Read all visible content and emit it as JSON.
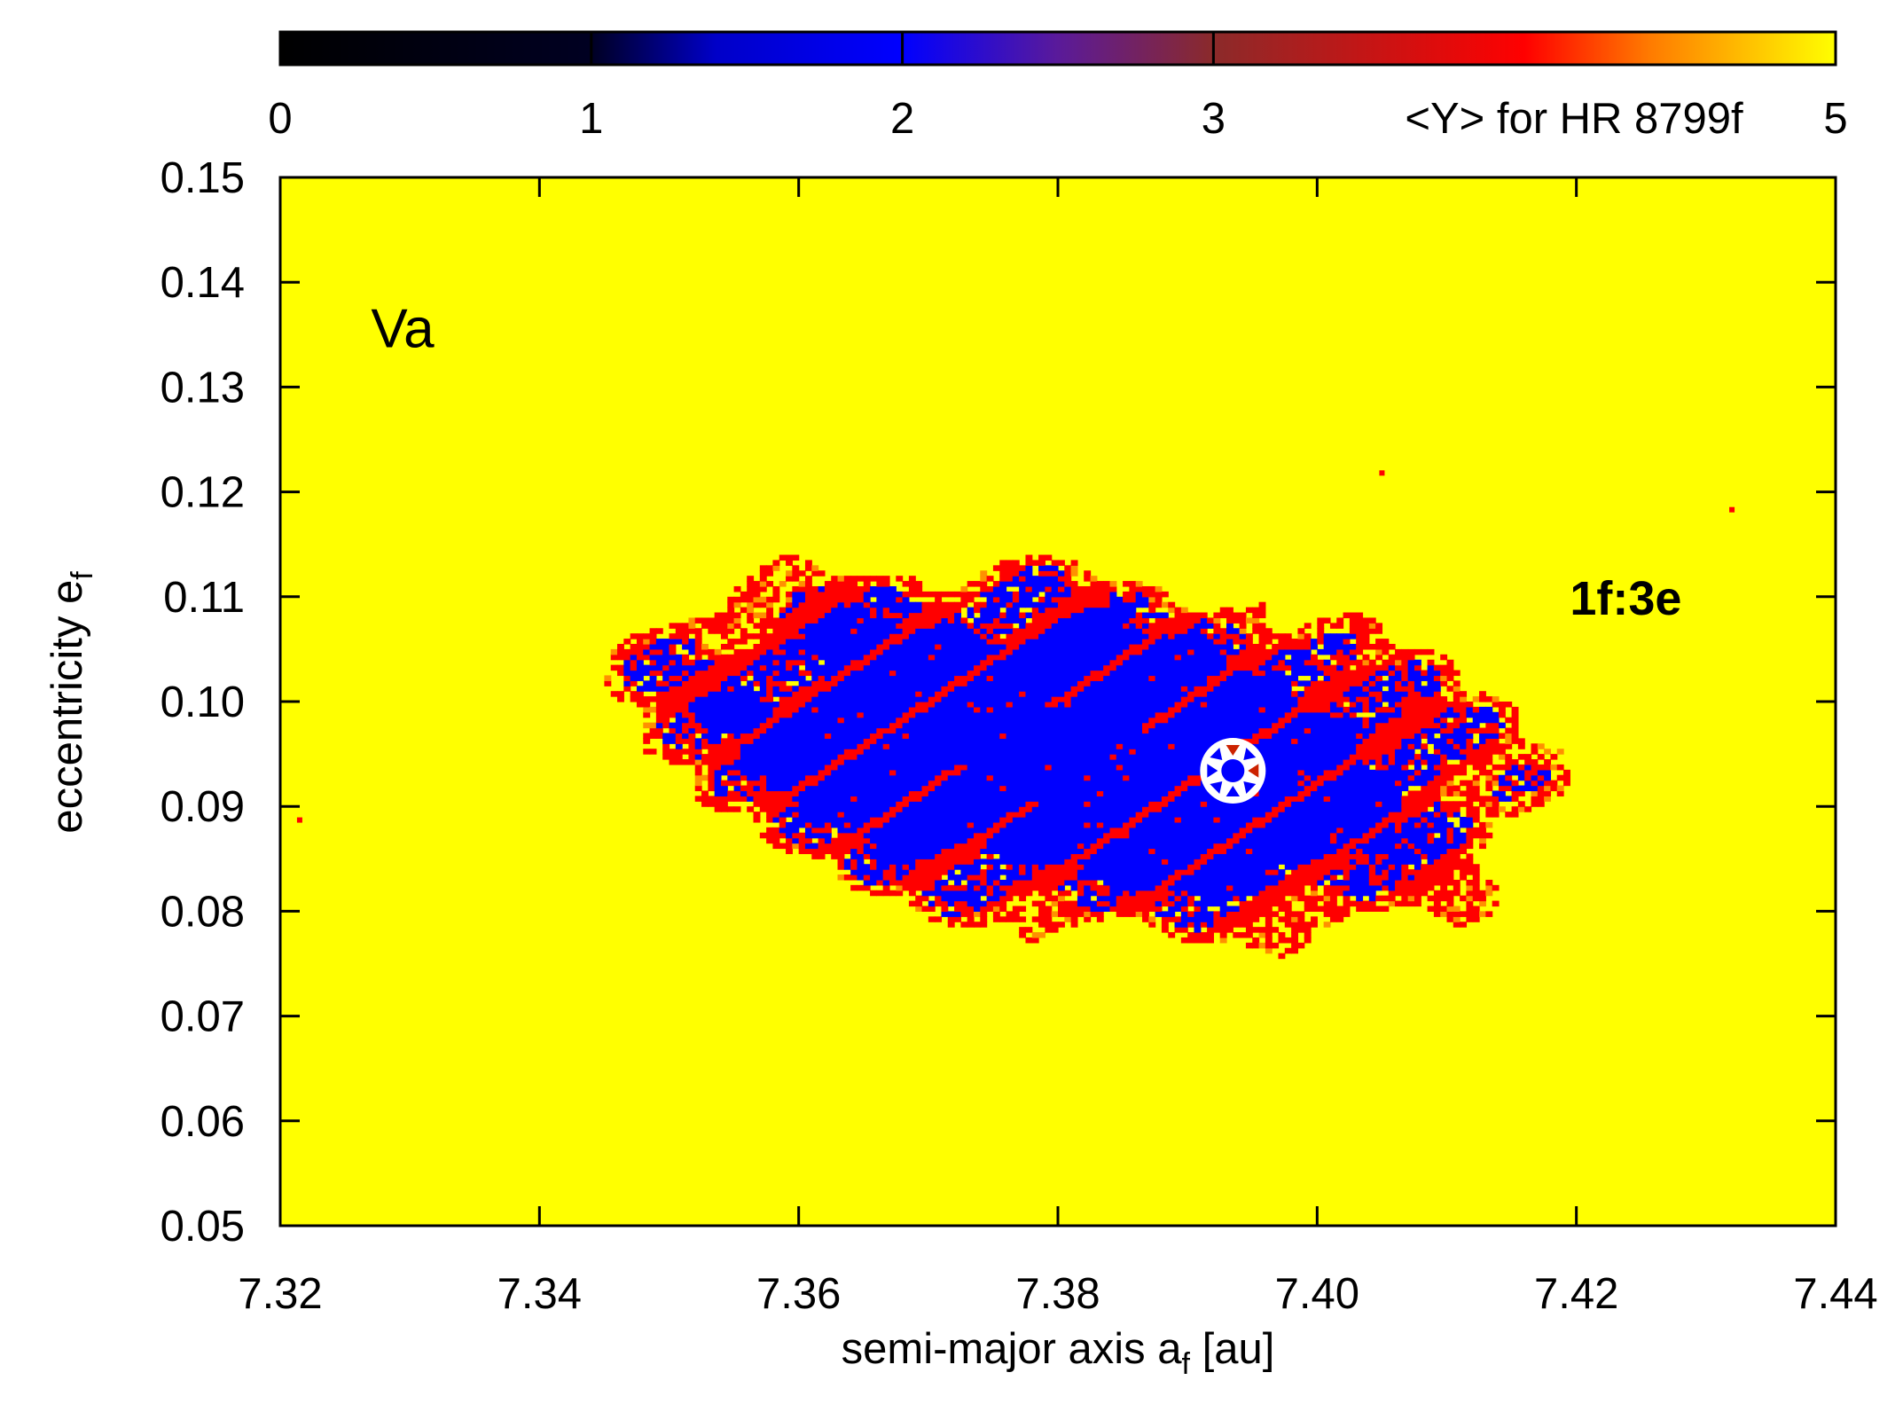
{
  "chart_data": {
    "type": "heatmap",
    "title": "",
    "xlabel": {
      "main": "semi-major axis a",
      "sub": "f",
      "unit": " [au]"
    },
    "ylabel": {
      "main": "eccentricity e",
      "sub": "f"
    },
    "xlim": [
      7.32,
      7.44
    ],
    "ylim": [
      0.05,
      0.15
    ],
    "x_ticks": [
      "7.32",
      "7.34",
      "7.36",
      "7.38",
      "7.40",
      "7.42",
      "7.44"
    ],
    "y_ticks": [
      "0.05",
      "0.06",
      "0.07",
      "0.08",
      "0.09",
      "0.10",
      "0.11",
      "0.12",
      "0.13",
      "0.14",
      "0.15"
    ],
    "colorbar": {
      "label": "<Y> for HR 8799f",
      "range": [
        0,
        5
      ],
      "ticks": [
        "0",
        "1",
        "2",
        "3",
        "5"
      ],
      "stops": [
        {
          "v": 0,
          "color": "#000000"
        },
        {
          "v": 1,
          "color": "#000022"
        },
        {
          "v": 1.4,
          "color": "#0000c8"
        },
        {
          "v": 2,
          "color": "#0000ff"
        },
        {
          "v": 2.5,
          "color": "#5a1a9a"
        },
        {
          "v": 3,
          "color": "#8b2a2a"
        },
        {
          "v": 4,
          "color": "#ff0000"
        },
        {
          "v": 4.4,
          "color": "#ff7a00"
        },
        {
          "v": 5,
          "color": "#ffff00"
        }
      ]
    },
    "background_value": 5,
    "regular_region": {
      "value": 2,
      "boundary_value": 4,
      "center_a": 7.3815,
      "center_e": 0.0952,
      "half_width_a": 0.0325,
      "half_height_e": 0.0155,
      "tilt_e_per_au": -0.13,
      "extent_a": [
        7.342,
        7.424
      ],
      "extent_e": [
        0.074,
        0.114
      ]
    },
    "nominal_orbit": {
      "a": 7.3935,
      "e": 0.0934,
      "marker": "white-ring-star"
    },
    "isolated_points": [
      {
        "a": 7.405,
        "e": 0.1218,
        "value": 4
      },
      {
        "a": 7.432,
        "e": 0.1183,
        "value": 4
      },
      {
        "a": 7.3215,
        "e": 0.0887,
        "value": 4
      }
    ],
    "annotations": [
      {
        "text": "Va",
        "a": 7.327,
        "e": 0.1338,
        "style": "panel"
      },
      {
        "text": "1f:3e",
        "a": 7.4195,
        "e": 0.1083,
        "style": "bold"
      }
    ]
  }
}
